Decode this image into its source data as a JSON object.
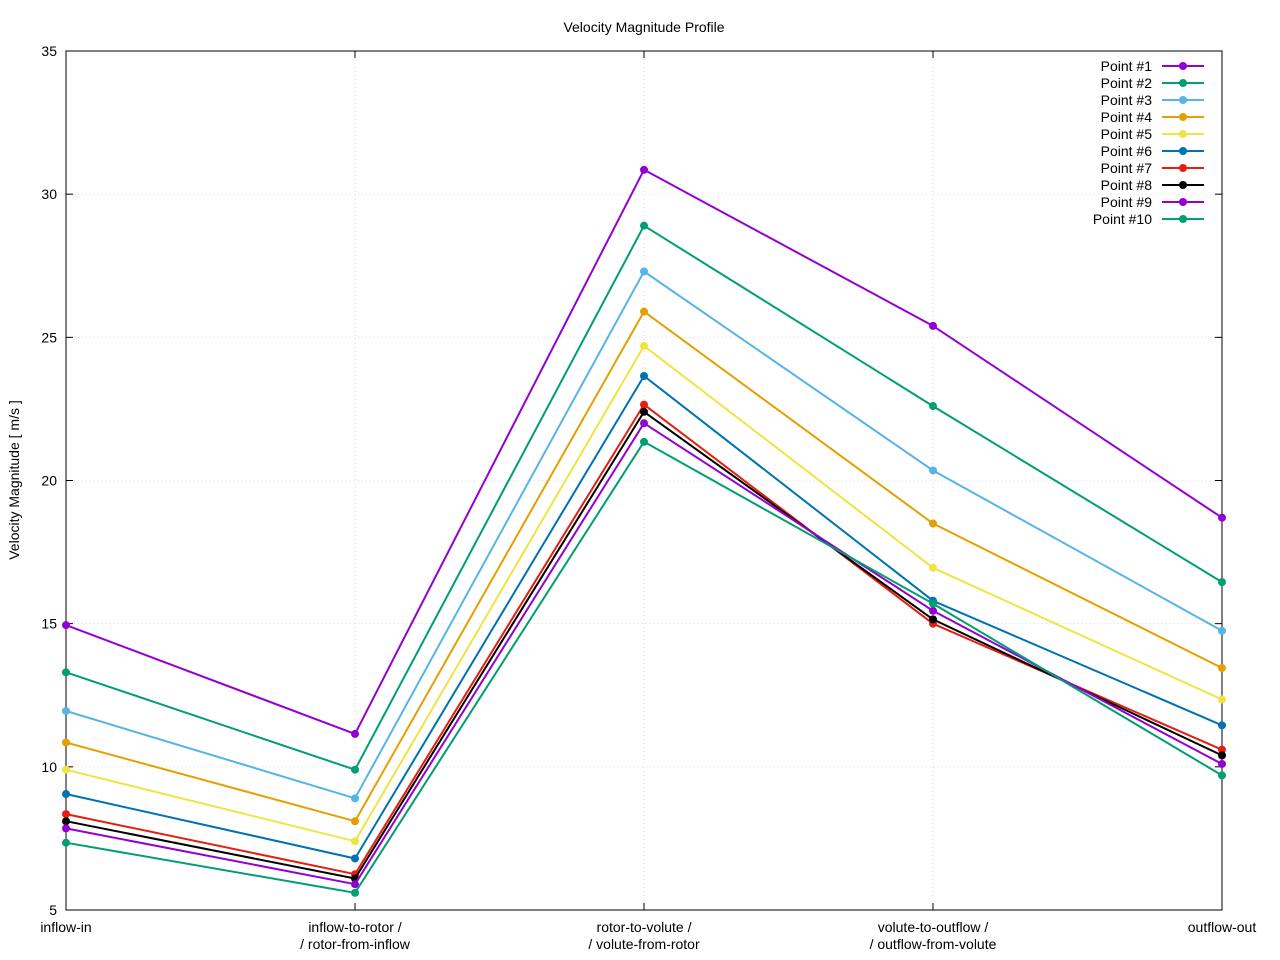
{
  "chart_data": {
    "type": "line",
    "title": "Velocity Magnitude Profile",
    "xlabel": "",
    "ylabel": "Velocity Magnitude [ m/s ]",
    "ylim": [
      5,
      35
    ],
    "yticks": [
      "5",
      "10",
      "15",
      "20",
      "25",
      "30",
      "35"
    ],
    "categories": [
      [
        "inflow-in"
      ],
      [
        "inflow-to-rotor /",
        "/ rotor-from-inflow"
      ],
      [
        "rotor-to-volute /",
        "/ volute-from-rotor"
      ],
      [
        "volute-to-outflow /",
        "/ outflow-from-volute"
      ],
      [
        "outflow-out"
      ]
    ],
    "grid": true,
    "legend_position": "top-right",
    "series": [
      {
        "name": "Point #1",
        "color": "#9400d3",
        "values": [
          14.95,
          11.15,
          30.85,
          25.4,
          18.7
        ]
      },
      {
        "name": "Point #2",
        "color": "#009e73",
        "values": [
          13.3,
          9.9,
          28.9,
          22.6,
          16.45
        ]
      },
      {
        "name": "Point #3",
        "color": "#56b4e9",
        "values": [
          11.95,
          8.9,
          27.3,
          20.35,
          14.75
        ]
      },
      {
        "name": "Point #4",
        "color": "#e69f00",
        "values": [
          10.85,
          8.1,
          25.9,
          18.5,
          13.45
        ]
      },
      {
        "name": "Point #5",
        "color": "#f0e442",
        "values": [
          9.9,
          7.4,
          24.7,
          16.95,
          12.35
        ]
      },
      {
        "name": "Point #6",
        "color": "#0072b2",
        "values": [
          9.05,
          6.8,
          23.65,
          15.8,
          11.45
        ]
      },
      {
        "name": "Point #7",
        "color": "#e51e10",
        "values": [
          8.35,
          6.25,
          22.65,
          15.0,
          10.6
        ]
      },
      {
        "name": "Point #8",
        "color": "#000000",
        "values": [
          8.1,
          6.1,
          22.4,
          15.15,
          10.4
        ]
      },
      {
        "name": "Point #9",
        "color": "#9400d3",
        "values": [
          7.85,
          5.9,
          22.0,
          15.45,
          10.1
        ]
      },
      {
        "name": "Point #10",
        "color": "#009e73",
        "values": [
          7.35,
          5.6,
          21.35,
          15.7,
          9.7
        ]
      }
    ]
  }
}
